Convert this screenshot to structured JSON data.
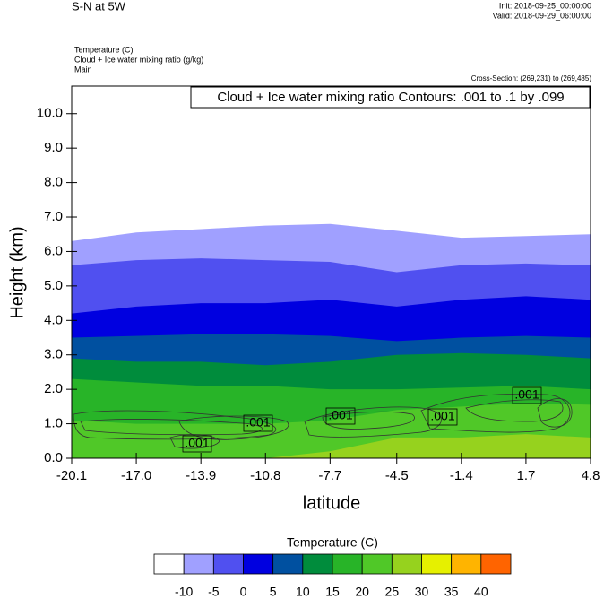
{
  "chart_data": {
    "type": "filled_contour",
    "title": "S-N at 5W",
    "init": "Init: 2018-09-25_00:00:00",
    "valid": "Valid: 2018-09-29_06:00:00",
    "fields": [
      "Temperature   (C)",
      "Cloud + Ice water mixing ratio   (g/kg)",
      "Main"
    ],
    "cross_section": "Cross-Section: (269,231) to (269,485)",
    "contour_info": "Cloud + Ice water mixing ratio Contours: .001 to .1 by .099",
    "contour_labels": [
      ".001",
      ".001",
      ".001",
      ".001",
      ".001"
    ],
    "xlabel": "latitude",
    "ylabel": "Height (km)",
    "xlim": [
      -20.1,
      4.8
    ],
    "ylim": [
      0,
      10.8
    ],
    "xticks": [
      -20.1,
      {
        "value": -17,
        "label": "-17.0"
      },
      -13.9,
      -10.8,
      -7.7,
      -4.5,
      -1.4,
      1.7,
      4.8
    ],
    "yticks": [
      {
        "value": 0,
        "label": "0.0"
      },
      {
        "value": 1,
        "label": "1.0"
      },
      {
        "value": 2,
        "label": "2.0"
      },
      {
        "value": 3,
        "label": "3.0"
      },
      {
        "value": 4,
        "label": "4.0"
      },
      {
        "value": 5,
        "label": "5.0"
      },
      {
        "value": 6,
        "label": "6.0"
      },
      {
        "value": 7,
        "label": "7.0"
      },
      {
        "value": 8,
        "label": "8.0"
      },
      {
        "value": 9,
        "label": "9.0"
      },
      {
        "value": 10,
        "label": "10.0"
      }
    ],
    "x": [
      -20.1,
      -17,
      -13.9,
      -10.8,
      -7.7,
      -4.5,
      -1.4,
      1.7,
      4.8
    ],
    "isotherms": [
      {
        "level": -10,
        "heights": [
          6.3,
          6.55,
          6.65,
          6.75,
          6.8,
          6.6,
          6.4,
          6.45,
          6.5
        ]
      },
      {
        "level": -5,
        "heights": [
          5.6,
          5.75,
          5.8,
          5.75,
          5.7,
          5.4,
          5.6,
          5.65,
          5.6
        ]
      },
      {
        "level": 0,
        "heights": [
          4.2,
          4.4,
          4.5,
          4.5,
          4.6,
          4.4,
          4.6,
          4.7,
          4.6
        ]
      },
      {
        "level": 5,
        "heights": [
          3.5,
          3.55,
          3.6,
          3.6,
          3.55,
          3.4,
          3.5,
          3.55,
          3.5
        ]
      },
      {
        "level": 10,
        "heights": [
          2.9,
          2.8,
          2.8,
          2.7,
          2.8,
          3.0,
          3.05,
          3.0,
          2.9
        ]
      },
      {
        "level": 15,
        "heights": [
          2.3,
          2.2,
          2.1,
          2.1,
          2.0,
          2.0,
          2.05,
          2.1,
          2.0
        ]
      },
      {
        "level": 20,
        "heights": [
          1.1,
          1.0,
          1.0,
          1.0,
          1.1,
          1.4,
          1.5,
          1.6,
          1.55
        ]
      },
      {
        "level": 25,
        "heights": [
          0,
          0,
          0,
          0,
          0.2,
          0.6,
          0.6,
          0.7,
          0.6
        ]
      }
    ],
    "colorbar": {
      "title": "Temperature  (C)",
      "levels": [
        -10,
        -5,
        0,
        5,
        10,
        15,
        20,
        25,
        30,
        35,
        40
      ],
      "colors": [
        "#ffffff",
        "#a0a0ff",
        "#5050f0",
        "#0000e0",
        "#0050a0",
        "#008c3c",
        "#28b428",
        "#50c828",
        "#96d21e",
        "#e6f000",
        "#ffb400",
        "#ff6400",
        "#ff1414"
      ]
    }
  }
}
